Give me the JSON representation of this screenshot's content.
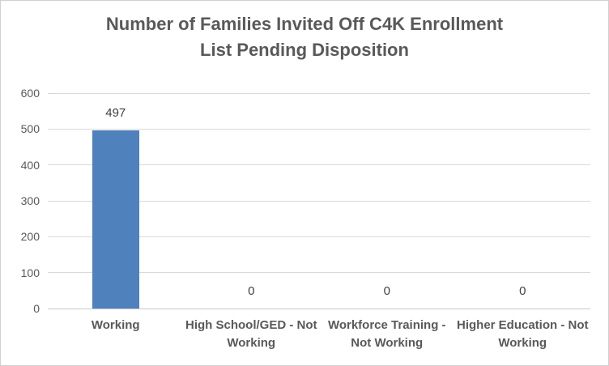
{
  "header": {
    "title_lines": [
      "Number of Families Invited Off C4K Enrollment",
      "List Pending Disposition"
    ]
  },
  "chart_data": {
    "type": "bar",
    "title": "Number of Families Invited Off C4K Enrollment List Pending Disposition",
    "categories": [
      "Working",
      "High School/GED - Not Working",
      "Workforce Training - Not Working",
      "Higher Education - Not Working"
    ],
    "values": [
      497,
      0,
      0,
      0
    ],
    "data_labels": [
      "497",
      "0",
      "0",
      "0"
    ],
    "xlabel": "",
    "ylabel": "",
    "ylim": [
      0,
      600
    ],
    "yticks": [
      0,
      100,
      200,
      300,
      400,
      500,
      600
    ],
    "grid": true,
    "legend": "none",
    "bar_color": "#4F81BD",
    "colors": {
      "title": "#595959",
      "tick_labels": "#595959",
      "category_labels": "#595959",
      "value_labels": "#404040",
      "gridline": "#D9D9D9",
      "axis_line": "#C8C8C8",
      "border": "#D0D0D0",
      "background": "#FFFFFF"
    }
  }
}
